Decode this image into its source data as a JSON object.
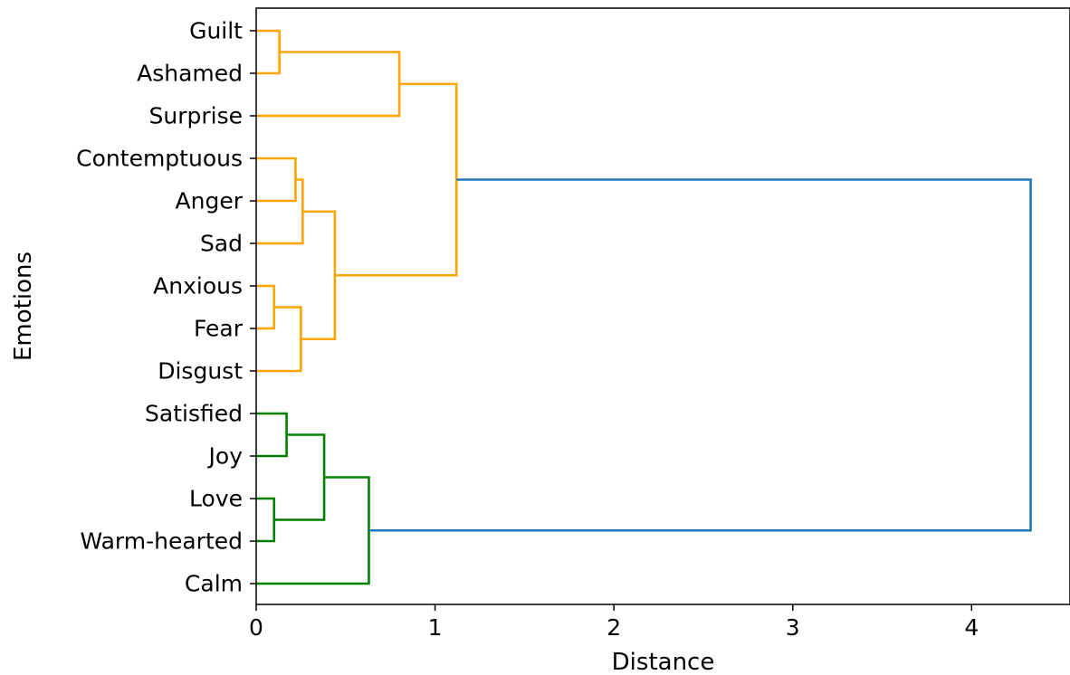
{
  "chart_data": {
    "type": "dendrogram",
    "orientation": "left-to-right",
    "xlabel": "Distance",
    "ylabel": "Emotions",
    "xlim": [
      0,
      4.55
    ],
    "xticks": [
      0,
      1,
      2,
      3,
      4
    ],
    "grid": false,
    "leaves": [
      "Guilt",
      "Ashamed",
      "Surprise",
      "Contemptuous",
      "Anger",
      "Sad",
      "Anxious",
      "Fear",
      "Disgust",
      "Satisfied",
      "Joy",
      "Love",
      "Warm-hearted",
      "Calm"
    ],
    "merges": [
      {
        "a": "L0",
        "b": "L1",
        "distance": 0.13,
        "color": "#ffa500"
      },
      {
        "a": "M0",
        "b": "L2",
        "distance": 0.8,
        "color": "#ffa500"
      },
      {
        "a": "L3",
        "b": "L4",
        "distance": 0.22,
        "color": "#ffa500"
      },
      {
        "a": "M2",
        "b": "L5",
        "distance": 0.26,
        "color": "#ffa500"
      },
      {
        "a": "L6",
        "b": "L7",
        "distance": 0.1,
        "color": "#ffa500"
      },
      {
        "a": "M4",
        "b": "L8",
        "distance": 0.25,
        "color": "#ffa500"
      },
      {
        "a": "M3",
        "b": "M5",
        "distance": 0.44,
        "color": "#ffa500"
      },
      {
        "a": "M1",
        "b": "M6",
        "distance": 1.12,
        "color": "#ffa500"
      },
      {
        "a": "L9",
        "b": "L10",
        "distance": 0.17,
        "color": "#008000"
      },
      {
        "a": "L11",
        "b": "L12",
        "distance": 0.1,
        "color": "#008000"
      },
      {
        "a": "M8",
        "b": "M9",
        "distance": 0.38,
        "color": "#008000"
      },
      {
        "a": "M10",
        "b": "L13",
        "distance": 0.63,
        "color": "#008000"
      },
      {
        "a": "M7",
        "b": "M11",
        "distance": 4.33,
        "color": "#1f77b4"
      }
    ]
  }
}
